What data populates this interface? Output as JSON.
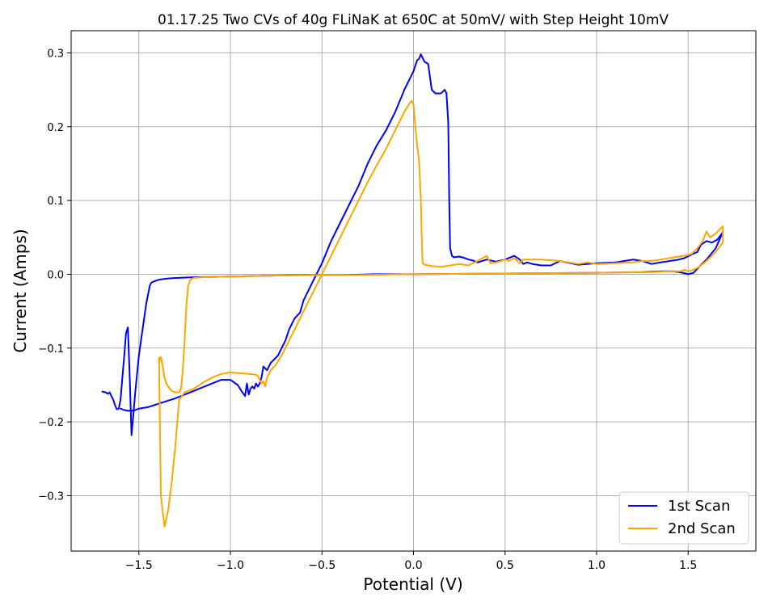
{
  "chart_data": {
    "type": "line",
    "title": "01.17.25 Two CVs of 40g FLiNaK at 650C at 50mV/ with Step Height 10mV",
    "xlabel": "Potential (V)",
    "ylabel": "Current (Amps)",
    "xlim": [
      -1.87,
      1.87
    ],
    "ylim": [
      -0.375,
      0.33
    ],
    "xticks": [
      -1.5,
      -1.0,
      -0.5,
      0.0,
      0.5,
      1.0,
      1.5
    ],
    "xtick_labels": [
      "−1.5",
      "−1.0",
      "−0.5",
      "0.0",
      "0.5",
      "1.0",
      "1.5"
    ],
    "yticks": [
      -0.3,
      -0.2,
      -0.1,
      0.0,
      0.1,
      0.2,
      0.3
    ],
    "ytick_labels": [
      "−0.3",
      "−0.2",
      "−0.1",
      "0.0",
      "0.1",
      "0.2",
      "0.3"
    ],
    "grid": true,
    "legend_position": "bottom-right",
    "series": [
      {
        "name": "1st Scan",
        "color": "#0000ff",
        "x": [
          -1.7,
          -1.68,
          -1.67,
          -1.66,
          -1.65,
          -1.64,
          -1.63,
          -1.62,
          -1.61,
          -1.6,
          -1.59,
          -1.58,
          -1.57,
          -1.56,
          -1.55,
          -1.54,
          -1.53,
          -1.52,
          -1.5,
          -1.48,
          -1.46,
          -1.44,
          -1.43,
          -1.42,
          -1.41,
          -1.4,
          -1.38,
          -1.35,
          -1.3,
          -1.2,
          -1.0,
          -0.8,
          -0.6,
          -0.4,
          -0.2,
          0.0,
          0.5,
          1.0,
          1.25,
          1.35,
          1.42,
          1.47,
          1.5,
          1.53,
          1.56,
          1.6,
          1.65,
          1.69,
          1.69,
          1.66,
          1.63,
          1.6,
          1.57,
          1.55,
          1.52,
          1.48,
          1.45,
          1.4,
          1.35,
          1.3,
          1.25,
          1.2,
          1.1,
          1.0,
          0.9,
          0.8,
          0.75,
          0.7,
          0.65,
          0.62,
          0.6,
          0.58,
          0.55,
          0.52,
          0.5,
          0.45,
          0.4,
          0.35,
          0.32,
          0.3,
          0.28,
          0.25,
          0.22,
          0.21,
          0.2,
          0.195,
          0.19,
          0.18,
          0.17,
          0.15,
          0.12,
          0.1,
          0.08,
          0.06,
          0.04,
          0.03,
          0.02,
          0.0,
          -0.05,
          -0.1,
          -0.15,
          -0.2,
          -0.25,
          -0.3,
          -0.35,
          -0.4,
          -0.45,
          -0.5,
          -0.55,
          -0.6,
          -0.62,
          -0.65,
          -0.68,
          -0.7,
          -0.72,
          -0.74,
          -0.76,
          -0.78,
          -0.8,
          -0.82,
          -0.83,
          -0.84,
          -0.85,
          -0.86,
          -0.87,
          -0.88,
          -0.89,
          -0.9,
          -0.91,
          -0.92,
          -0.94,
          -0.96,
          -1.0,
          -1.05,
          -1.1,
          -1.2,
          -1.3,
          -1.4,
          -1.45,
          -1.5,
          -1.52,
          -1.54,
          -1.56,
          -1.58,
          -1.6
        ],
        "y": [
          -0.159,
          -0.16,
          -0.162,
          -0.16,
          -0.165,
          -0.17,
          -0.178,
          -0.183,
          -0.182,
          -0.17,
          -0.14,
          -0.11,
          -0.08,
          -0.072,
          -0.14,
          -0.218,
          -0.19,
          -0.16,
          -0.11,
          -0.075,
          -0.04,
          -0.015,
          -0.011,
          -0.01,
          -0.009,
          -0.008,
          -0.007,
          -0.006,
          -0.005,
          -0.004,
          -0.003,
          -0.002,
          -0.001,
          -0.001,
          0.0,
          0.0,
          0.001,
          0.002,
          0.003,
          0.004,
          0.004,
          0.002,
          0.0,
          0.002,
          0.01,
          0.02,
          0.035,
          0.057,
          0.057,
          0.047,
          0.043,
          0.045,
          0.04,
          0.03,
          0.027,
          0.022,
          0.02,
          0.018,
          0.016,
          0.014,
          0.018,
          0.02,
          0.016,
          0.015,
          0.013,
          0.018,
          0.012,
          0.012,
          0.014,
          0.016,
          0.014,
          0.02,
          0.025,
          0.022,
          0.02,
          0.017,
          0.02,
          0.016,
          0.019,
          0.02,
          0.022,
          0.024,
          0.023,
          0.025,
          0.035,
          0.1,
          0.205,
          0.245,
          0.25,
          0.245,
          0.245,
          0.25,
          0.285,
          0.288,
          0.298,
          0.292,
          0.29,
          0.275,
          0.25,
          0.22,
          0.195,
          0.175,
          0.15,
          0.12,
          0.095,
          0.07,
          0.045,
          0.015,
          -0.01,
          -0.035,
          -0.052,
          -0.06,
          -0.075,
          -0.09,
          -0.1,
          -0.11,
          -0.115,
          -0.12,
          -0.13,
          -0.125,
          -0.14,
          -0.148,
          -0.152,
          -0.148,
          -0.155,
          -0.152,
          -0.155,
          -0.163,
          -0.148,
          -0.165,
          -0.158,
          -0.15,
          -0.143,
          -0.143,
          -0.148,
          -0.158,
          -0.168,
          -0.176,
          -0.18,
          -0.182,
          -0.184,
          -0.185,
          -0.185,
          -0.184,
          -0.182
        ]
      },
      {
        "name": "2nd Scan",
        "color": "#ffa500",
        "x": [
          -1.39,
          -1.38,
          -1.37,
          -1.36,
          -1.35,
          -1.34,
          -1.33,
          -1.32,
          -1.31,
          -1.3,
          -1.29,
          -1.28,
          -1.27,
          -1.26,
          -1.25,
          -1.24,
          -1.23,
          -1.22,
          -1.21,
          -1.2,
          -1.15,
          -1.0,
          -0.8,
          -0.5,
          -0.3,
          0.0,
          0.5,
          1.0,
          1.3,
          1.4,
          1.46,
          1.48,
          1.5,
          1.53,
          1.56,
          1.6,
          1.65,
          1.69,
          1.69,
          1.67,
          1.65,
          1.62,
          1.6,
          1.58,
          1.55,
          1.52,
          1.5,
          1.45,
          1.4,
          1.35,
          1.3,
          1.25,
          1.2,
          1.1,
          1.0,
          0.95,
          0.9,
          0.85,
          0.8,
          0.75,
          0.7,
          0.65,
          0.6,
          0.58,
          0.55,
          0.52,
          0.5,
          0.48,
          0.45,
          0.42,
          0.4,
          0.35,
          0.3,
          0.25,
          0.2,
          0.15,
          0.1,
          0.06,
          0.05,
          0.045,
          0.04,
          0.03,
          0.02,
          0.01,
          0.0,
          -0.01,
          -0.02,
          -0.03,
          -0.05,
          -0.08,
          -0.1,
          -0.15,
          -0.2,
          -0.25,
          -0.3,
          -0.35,
          -0.4,
          -0.45,
          -0.5,
          -0.55,
          -0.6,
          -0.65,
          -0.68,
          -0.7,
          -0.72,
          -0.74,
          -0.76,
          -0.78,
          -0.79,
          -0.8,
          -0.81,
          -0.82,
          -0.83,
          -0.84,
          -0.85,
          -0.86,
          -0.9,
          -0.95,
          -1.0,
          -1.05,
          -1.1,
          -1.15,
          -1.2,
          -1.25,
          -1.28,
          -1.3,
          -1.32,
          -1.34,
          -1.36,
          -1.38,
          -1.39
        ],
        "y": [
          -0.12,
          -0.112,
          -0.125,
          -0.14,
          -0.148,
          -0.152,
          -0.155,
          -0.158,
          -0.159,
          -0.16,
          -0.16,
          -0.16,
          -0.155,
          -0.13,
          -0.09,
          -0.04,
          -0.015,
          -0.008,
          -0.006,
          -0.005,
          -0.004,
          -0.003,
          -0.002,
          -0.001,
          -0.001,
          0.0,
          0.001,
          0.002,
          0.003,
          0.004,
          0.004,
          0.006,
          0.004,
          0.006,
          0.01,
          0.018,
          0.03,
          0.043,
          0.065,
          0.06,
          0.055,
          0.05,
          0.058,
          0.045,
          0.035,
          0.028,
          0.026,
          0.024,
          0.022,
          0.02,
          0.018,
          0.018,
          0.016,
          0.015,
          0.014,
          0.016,
          0.014,
          0.016,
          0.018,
          0.019,
          0.02,
          0.02,
          0.02,
          0.015,
          0.022,
          0.018,
          0.02,
          0.018,
          0.016,
          0.015,
          0.025,
          0.018,
          0.012,
          0.014,
          0.012,
          0.01,
          0.011,
          0.013,
          0.015,
          0.05,
          0.1,
          0.155,
          0.175,
          0.2,
          0.23,
          0.235,
          0.232,
          0.228,
          0.22,
          0.205,
          0.195,
          0.17,
          0.148,
          0.125,
          0.1,
          0.075,
          0.05,
          0.025,
          0.0,
          -0.025,
          -0.05,
          -0.075,
          -0.09,
          -0.1,
          -0.11,
          -0.118,
          -0.125,
          -0.13,
          -0.135,
          -0.14,
          -0.152,
          -0.145,
          -0.148,
          -0.143,
          -0.138,
          -0.136,
          -0.135,
          -0.134,
          -0.133,
          -0.135,
          -0.14,
          -0.147,
          -0.155,
          -0.16,
          -0.17,
          -0.23,
          -0.28,
          -0.32,
          -0.342,
          -0.3,
          -0.113
        ]
      }
    ]
  }
}
